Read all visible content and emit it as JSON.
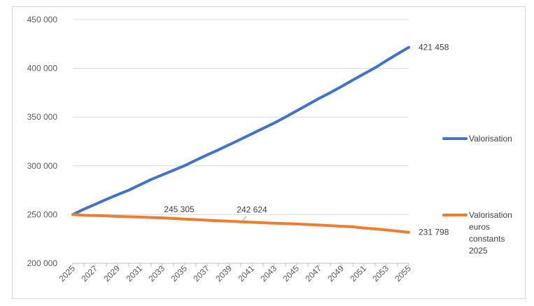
{
  "chart_data": {
    "type": "line",
    "title": "",
    "xlabel": "",
    "ylabel": "",
    "ylim": [
      200000,
      450000
    ],
    "yticks": [
      "200 000",
      "250 000",
      "300 000",
      "350 000",
      "400 000",
      "450 000"
    ],
    "x": [
      2025,
      2026,
      2027,
      2028,
      2029,
      2030,
      2031,
      2032,
      2033,
      2034,
      2035,
      2036,
      2037,
      2038,
      2039,
      2040,
      2041,
      2042,
      2043,
      2044,
      2045,
      2046,
      2047,
      2048,
      2049,
      2050,
      2051,
      2052,
      2053,
      2054,
      2055
    ],
    "xticks": [
      "2025",
      "2027",
      "2029",
      "2031",
      "2033",
      "2035",
      "2037",
      "2039",
      "2041",
      "2043",
      "2045",
      "2047",
      "2049",
      "2051",
      "2053",
      "2055"
    ],
    "grid": true,
    "legend_position": "right",
    "series": [
      {
        "name": "Valorisation",
        "color": "#4472c4",
        "values": [
          250000,
          255500,
          260500,
          265600,
          270400,
          275000,
          280500,
          286000,
          290700,
          295500,
          300200,
          305800,
          311200,
          316300,
          321800,
          327300,
          332800,
          338400,
          344000,
          350100,
          356400,
          362800,
          369200,
          375100,
          381400,
          387900,
          394300,
          400600,
          407800,
          414800,
          421458
        ]
      },
      {
        "name": "Valorisation\neuros\nconstants\n2025",
        "legend_lines": [
          "Valorisation",
          "euros",
          "constants",
          "2025"
        ],
        "color": "#ed7d31",
        "values": [
          250000,
          249300,
          249000,
          248600,
          248100,
          247800,
          247400,
          247000,
          246600,
          246000,
          245305,
          244800,
          244200,
          243700,
          243200,
          242624,
          242100,
          241600,
          241100,
          240700,
          240300,
          239800,
          239200,
          238600,
          238000,
          237400,
          236200,
          235300,
          234200,
          233000,
          231798
        ]
      }
    ],
    "annotations": [
      {
        "text": "421 458",
        "series": 0,
        "x": 2055,
        "y": 421458
      },
      {
        "text": "245 305",
        "series": 1,
        "x": 2035,
        "y": 245305
      },
      {
        "text": "242 624",
        "series": 1,
        "x": 2040,
        "y": 242624
      },
      {
        "text": "231 798",
        "series": 1,
        "x": 2055,
        "y": 231798
      }
    ]
  }
}
